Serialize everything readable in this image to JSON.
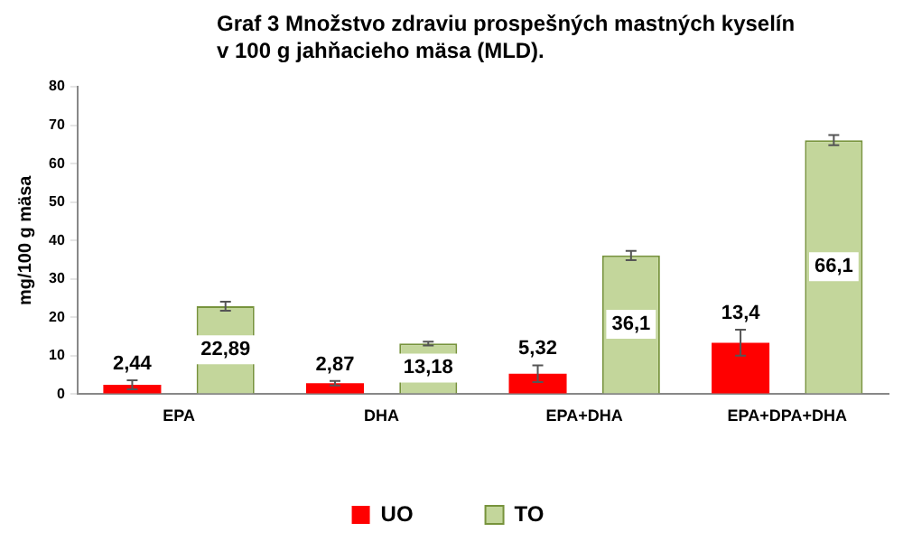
{
  "chart_data": {
    "type": "bar",
    "title": "Graf 3 Množstvo zdraviu prospešných mastných kyselín v 100 g jahňacieho mäsa (MLD).",
    "ylabel": "mg/100 g mäsa",
    "categories": [
      "EPA",
      "DHA",
      "EPA+DHA",
      "EPA+DPA+DHA"
    ],
    "series": [
      {
        "name": "UO",
        "color": "#ff0000",
        "values": [
          2.44,
          2.87,
          5.32,
          13.4
        ],
        "errors": [
          1.2,
          0.6,
          2.2,
          3.4
        ],
        "value_labels": [
          "2,44",
          "2,87",
          "5,32",
          "13,4"
        ]
      },
      {
        "name": "TO",
        "color": "#c3d69b",
        "values": [
          22.89,
          13.18,
          36.1,
          66.1
        ],
        "errors": [
          1.2,
          0.5,
          1.2,
          1.3
        ],
        "value_labels": [
          "22,89",
          "13,18",
          "36,1",
          "66,1"
        ]
      }
    ],
    "ylim": [
      0,
      80
    ],
    "yticks": [
      0,
      10,
      20,
      30,
      40,
      50,
      60,
      70,
      80
    ],
    "grid": false,
    "legend": "bottom"
  }
}
